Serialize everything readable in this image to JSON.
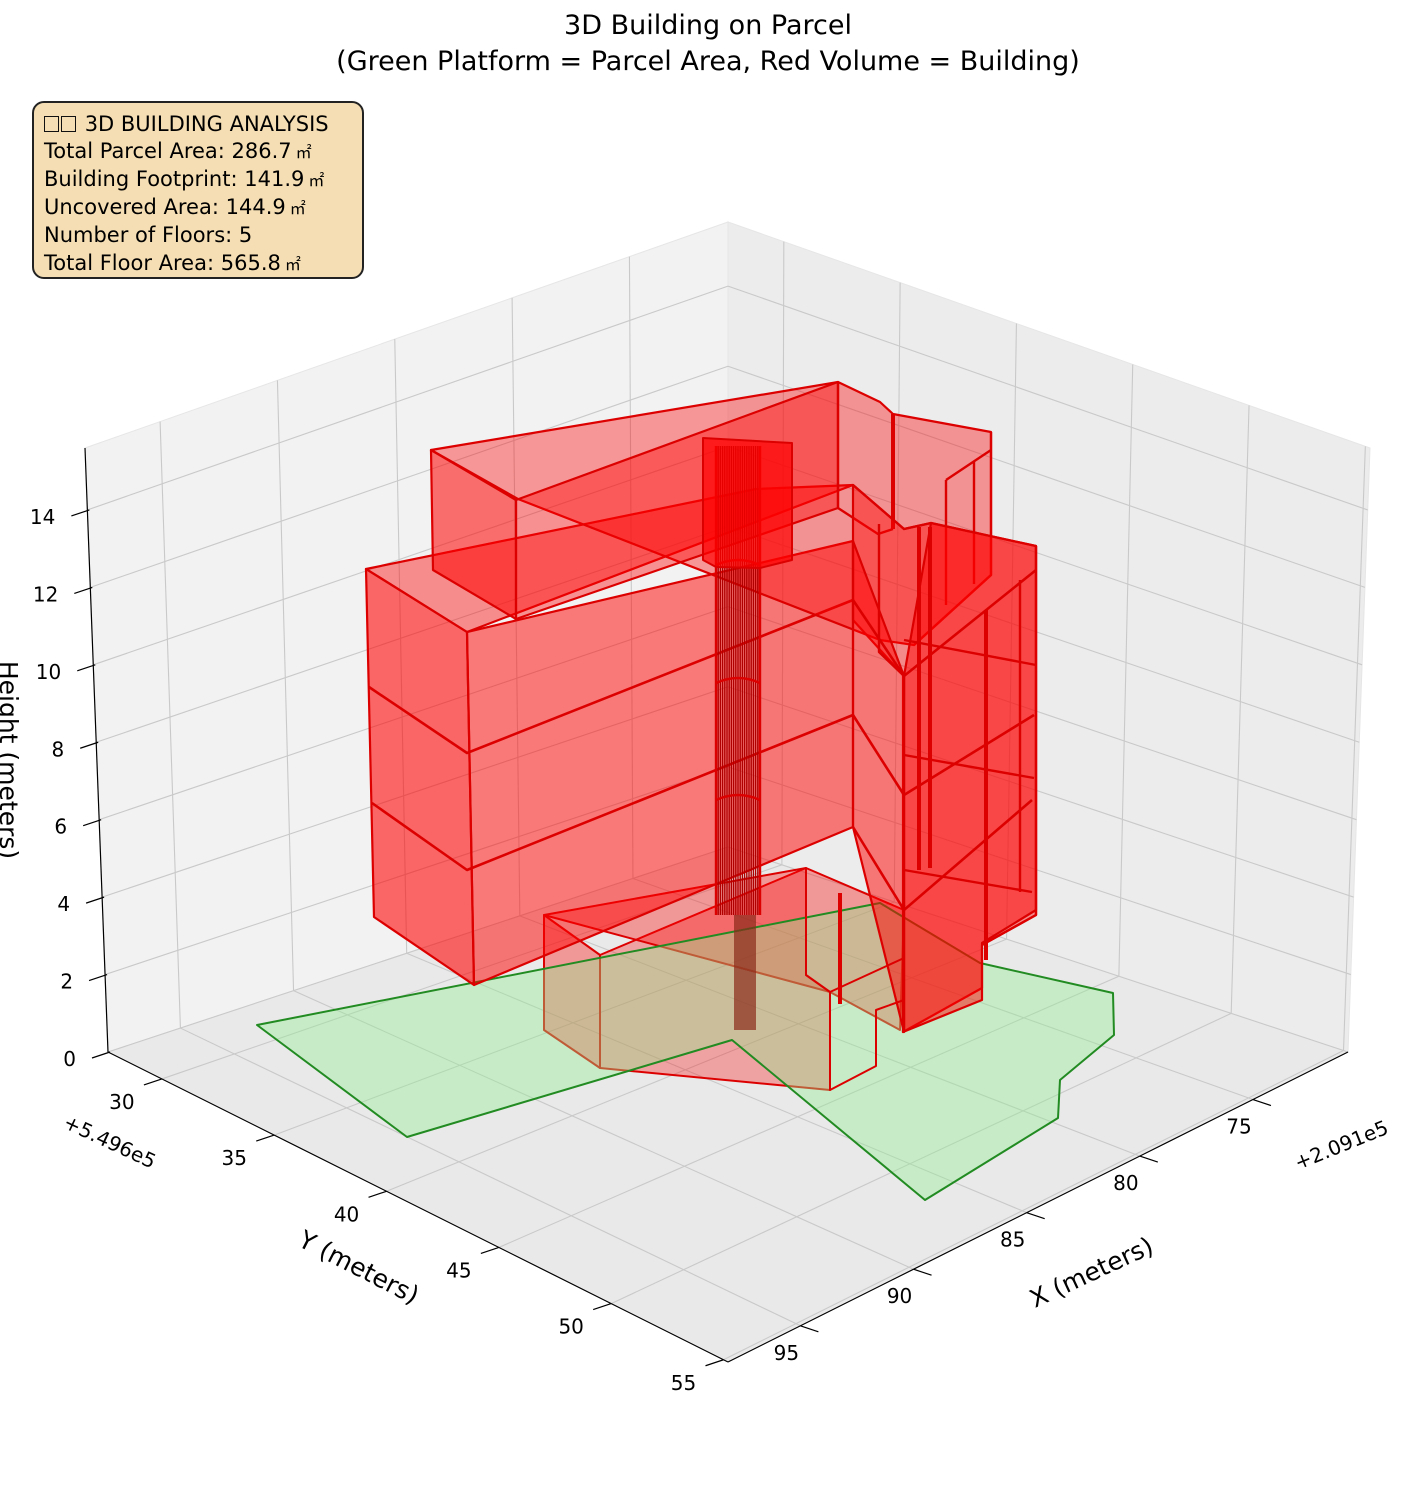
{
  "chart_data": {
    "type": "3d-polygon",
    "title": "3D Building on Parcel",
    "subtitle": "(Green Platform = Parcel Area, Red Volume = Building)",
    "xlabel": "X (meters)",
    "ylabel": "Y (meters)",
    "zlabel": "Height (meters)",
    "x_offset": "+2.091e5",
    "y_offset": "+5.496e5",
    "x_ticks": [
      "75",
      "80",
      "85",
      "90",
      "95"
    ],
    "y_ticks": [
      "30",
      "35",
      "40",
      "45",
      "50",
      "55"
    ],
    "z_ticks": [
      "0",
      "2",
      "4",
      "6",
      "8",
      "10",
      "12",
      "14"
    ],
    "grid": true,
    "parcel_color": "#228b22",
    "parcel_fill": "#90ee90",
    "building_color": "#dd0000",
    "building_fill": "#ff0000"
  },
  "info_box": {
    "icon": "building-icon",
    "heading": "3D BUILDING ANALYSIS",
    "lines": [
      {
        "label": "Total Parcel Area:",
        "value": "286.7",
        "unit": "㎡"
      },
      {
        "label": "Building Footprint:",
        "value": "141.9",
        "unit": "㎡"
      },
      {
        "label": "Uncovered Area:",
        "value": "144.9",
        "unit": "㎡"
      },
      {
        "label": "Number of Floors:",
        "value": "5",
        "unit": ""
      },
      {
        "label": "Total Floor Area:",
        "value": "565.8",
        "unit": "㎡"
      }
    ]
  }
}
